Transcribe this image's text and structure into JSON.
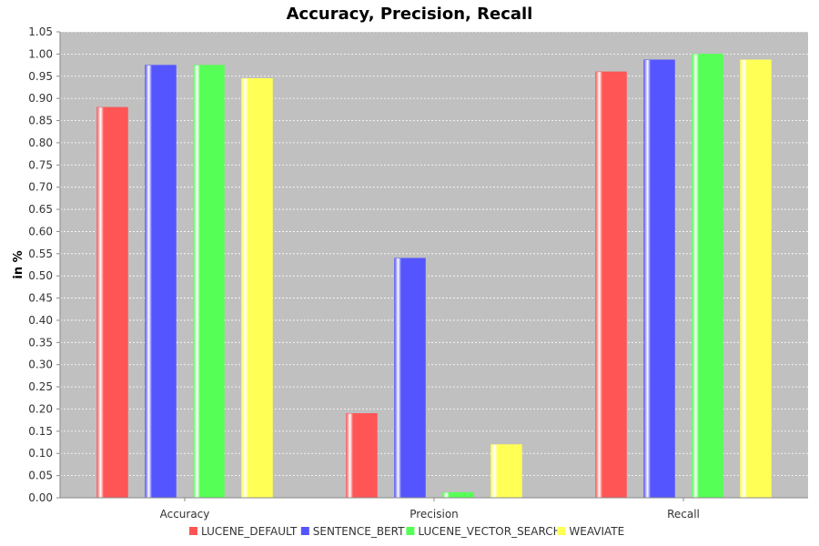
{
  "chart_data": {
    "type": "bar",
    "title": "Accuracy, Precision, Recall",
    "xlabel": "",
    "ylabel": "in %",
    "categories": [
      "Accuracy",
      "Precision",
      "Recall"
    ],
    "series": [
      {
        "name": "LUCENE_DEFAULT",
        "color": "#ff5555",
        "values": [
          0.88,
          0.19,
          0.96
        ]
      },
      {
        "name": "SENTENCE_BERT",
        "color": "#5555ff",
        "values": [
          0.975,
          0.54,
          0.987
        ]
      },
      {
        "name": "LUCENE_VECTOR_SEARCH",
        "color": "#55ff55",
        "values": [
          0.975,
          0.012,
          1.0
        ]
      },
      {
        "name": "WEAVIATE",
        "color": "#ffff55",
        "values": [
          0.945,
          0.12,
          0.987
        ]
      }
    ],
    "ylim": [
      0,
      1.05
    ],
    "yticks": [
      "0.00",
      "0.05",
      "0.10",
      "0.15",
      "0.20",
      "0.25",
      "0.30",
      "0.35",
      "0.40",
      "0.45",
      "0.50",
      "0.55",
      "0.60",
      "0.65",
      "0.70",
      "0.75",
      "0.80",
      "0.85",
      "0.90",
      "0.95",
      "1.00",
      "1.05"
    ],
    "grid": true,
    "legend_position": "bottom",
    "plot_background": "#c0c0c0"
  }
}
